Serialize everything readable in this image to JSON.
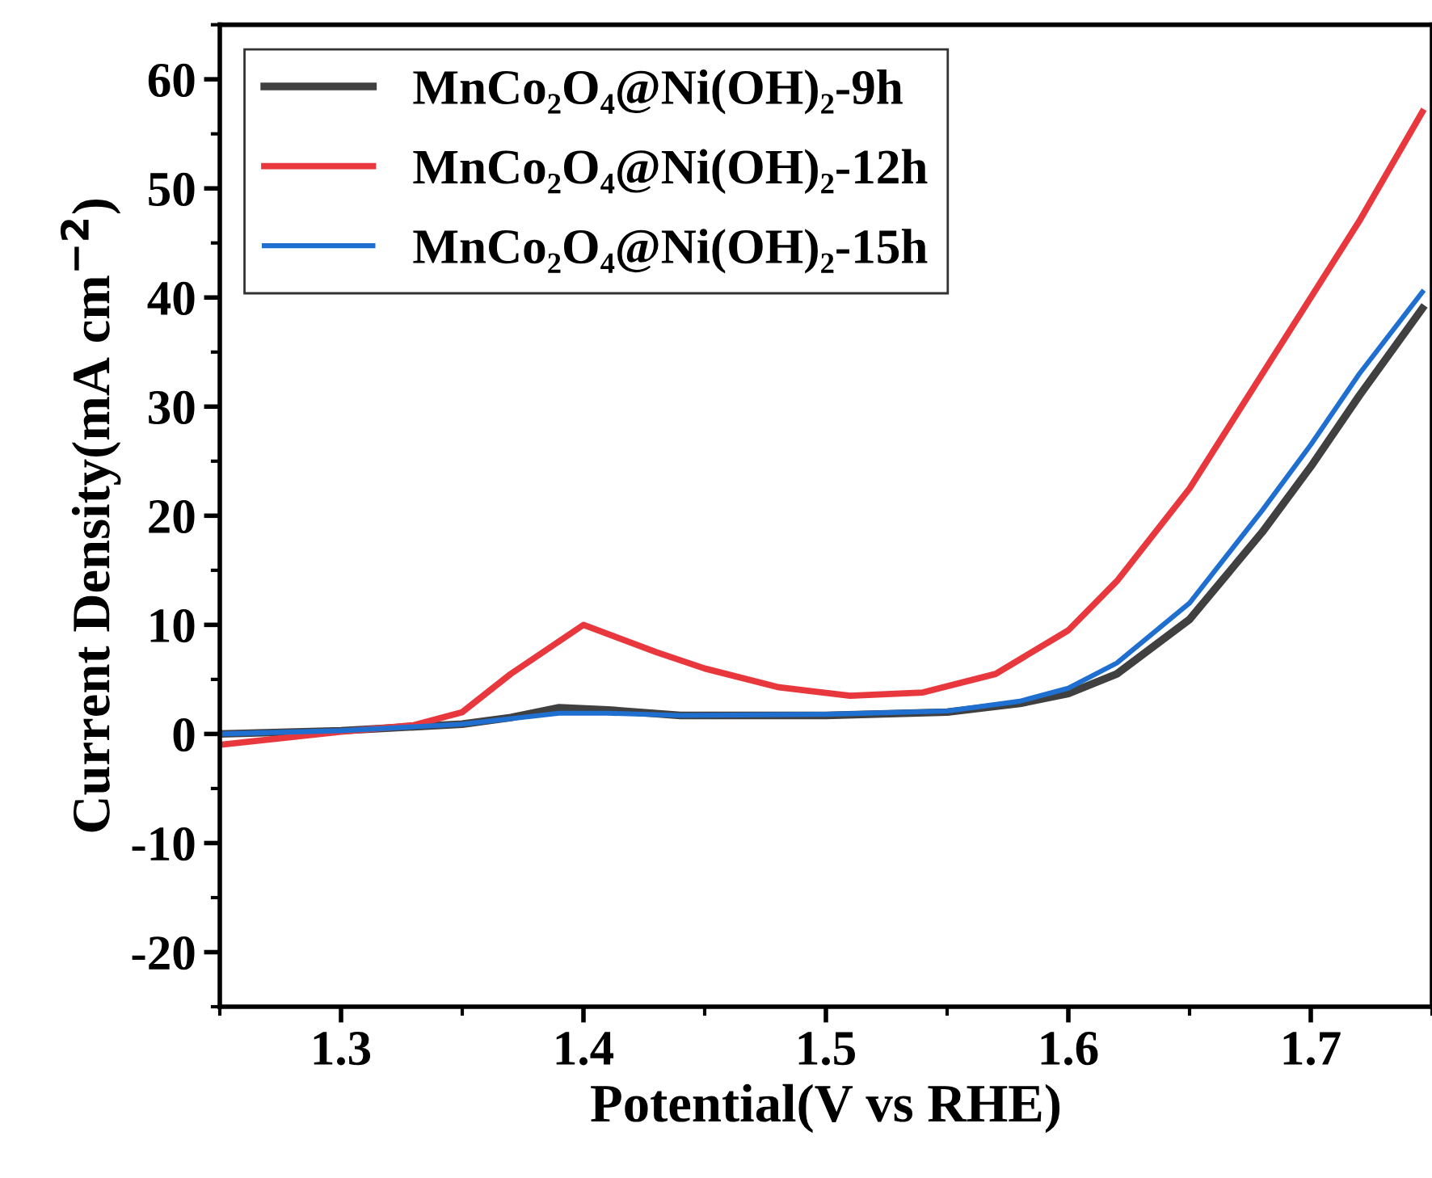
{
  "chart_data": {
    "type": "line",
    "xlabel": "Potential(V vs RHE)",
    "ylabel": "Current Density(mA cm$^{−2}$)",
    "xlim": [
      1.25,
      1.75
    ],
    "ylim": [
      -25,
      65
    ],
    "xticks": [
      1.3,
      1.4,
      1.5,
      1.6,
      1.7
    ],
    "yticks": [
      -20,
      -10,
      0,
      10,
      20,
      30,
      40,
      50,
      60
    ],
    "legend": "top left",
    "grid": false,
    "marker": "none",
    "line_style": "solid",
    "series": [
      {
        "name": "MnCo₂O₄@Ni(OH)₂-9h",
        "color": "#404040",
        "x": [
          1.25,
          1.3,
          1.35,
          1.37,
          1.39,
          1.41,
          1.44,
          1.5,
          1.55,
          1.58,
          1.6,
          1.62,
          1.65,
          1.68,
          1.7,
          1.72,
          1.746
        ],
        "values": [
          0,
          0.3,
          0.9,
          1.5,
          2.4,
          2.2,
          1.7,
          1.7,
          2.0,
          2.8,
          3.7,
          5.5,
          10.5,
          18.5,
          24.5,
          31,
          39
        ]
      },
      {
        "name": "MnCo₂O₄@Ni(OH)₂-12h",
        "color": "#e8383d",
        "x": [
          1.25,
          1.3,
          1.33,
          1.35,
          1.37,
          1.4,
          1.43,
          1.45,
          1.48,
          1.51,
          1.54,
          1.57,
          1.6,
          1.62,
          1.65,
          1.68,
          1.7,
          1.72,
          1.746
        ],
        "values": [
          -1,
          0.2,
          0.8,
          2,
          5.5,
          10,
          7.5,
          6,
          4.3,
          3.5,
          3.8,
          5.5,
          9.5,
          14,
          22.5,
          33,
          40,
          47,
          57
        ]
      },
      {
        "name": "MnCo₂O₄@Ni(OH)₂-15h",
        "color": "#1f6fd1",
        "x": [
          1.25,
          1.3,
          1.35,
          1.37,
          1.39,
          1.41,
          1.44,
          1.5,
          1.55,
          1.58,
          1.6,
          1.62,
          1.65,
          1.68,
          1.7,
          1.72,
          1.746
        ],
        "values": [
          0,
          0.3,
          0.9,
          1.4,
          1.9,
          1.9,
          1.7,
          1.8,
          2.1,
          3.0,
          4.2,
          6.5,
          12,
          20.5,
          26.5,
          33,
          40.5
        ]
      }
    ]
  }
}
